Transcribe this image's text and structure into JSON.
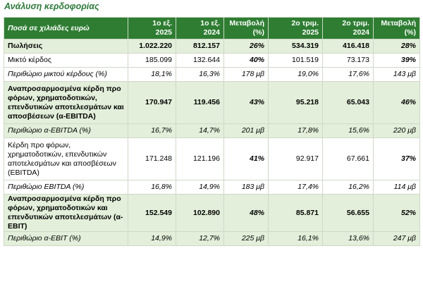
{
  "title": "Ανάλυση κερδοφορίας",
  "table": {
    "headers": [
      "Ποσά σε χιλιάδες ευρώ",
      "1ο εξ.\n2025",
      "1ο εξ.\n2024",
      "Μεταβολή\n(%)",
      "2ο τριμ.\n2025",
      "2ο τριμ.\n2024",
      "Μεταβολή\n(%)"
    ],
    "rows": [
      {
        "label": "Πωλήσεις",
        "cells": [
          "1.022.220",
          "812.157",
          "26%",
          "534.319",
          "416.418",
          "28%"
        ]
      },
      {
        "label": "Μικτό κέρδος",
        "cells": [
          "185.099",
          "132.644",
          "40%",
          "101.519",
          "73.173",
          "39%"
        ]
      },
      {
        "label": "Περιθώριο μικτού κέρδους (%)",
        "cells": [
          "18,1%",
          "16,3%",
          "178 μβ",
          "19,0%",
          "17,6%",
          "143 μβ"
        ]
      },
      {
        "label": "Αναπροσαρμοσμένα κέρδη προ φόρων, χρηματοδοτικών, επενδυτικών αποτελεσμάτων και αποσβέσεων (α-EBITDA)",
        "cells": [
          "170.947",
          "119.456",
          "43%",
          "95.218",
          "65.043",
          "46%"
        ]
      },
      {
        "label": "Περιθώριο α-EBITDA (%)",
        "cells": [
          "16,7%",
          "14,7%",
          "201 μβ",
          "17,8%",
          "15,6%",
          "220 μβ"
        ]
      },
      {
        "label": "Κέρδη προ φόρων, χρηματοδοτικών, επενδυτικών αποτελεσμάτων και αποσβέσεων (EBITDA)",
        "cells": [
          "171.248",
          "121.196",
          "41%",
          "92.917",
          "67.661",
          "37%"
        ]
      },
      {
        "label": "Περιθώριο EBITDA (%)",
        "cells": [
          "16,8%",
          "14,9%",
          "183 μβ",
          "17,4%",
          "16,2%",
          "114 μβ"
        ]
      },
      {
        "label": "Αναπροσαρμοσμένα κέρδη προ φόρων, χρηματοδοτικών και επενδυτικών αποτελεσμάτων (α-EBIT)",
        "cells": [
          "152.549",
          "102.890",
          "48%",
          "85.871",
          "56.655",
          "52%"
        ]
      },
      {
        "label": "Περιθώριο α-EBIT (%)",
        "cells": [
          "14,9%",
          "12,7%",
          "225 μβ",
          "16,1%",
          "13,6%",
          "247 μβ"
        ]
      }
    ]
  }
}
